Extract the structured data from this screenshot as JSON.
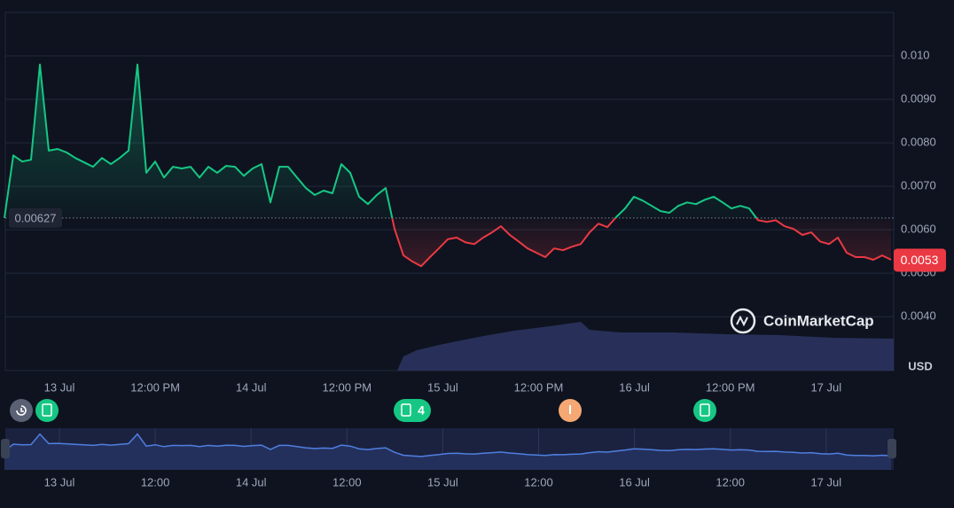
{
  "chart_data": {
    "type": "line",
    "values": [
      0.00627,
      0.00771,
      0.00757,
      0.00761,
      0.0098,
      0.00782,
      0.00786,
      0.00778,
      0.00765,
      0.00755,
      0.00745,
      0.00765,
      0.00751,
      0.00765,
      0.00782,
      0.0098,
      0.00731,
      0.00757,
      0.0072,
      0.00745,
      0.00741,
      0.00745,
      0.0072,
      0.00745,
      0.00731,
      0.00747,
      0.00745,
      0.00724,
      0.00741,
      0.00751,
      0.00663,
      0.00745,
      0.00745,
      0.0072,
      0.00696,
      0.0068,
      0.0069,
      0.00684,
      0.00751,
      0.00731,
      0.00676,
      0.00659,
      0.0068,
      0.00696,
      0.00602,
      0.00541,
      0.00527,
      0.00516,
      0.00537,
      0.00557,
      0.00578,
      0.00582,
      0.00571,
      0.00567,
      0.00582,
      0.00594,
      0.00608,
      0.00588,
      0.00573,
      0.00557,
      0.00547,
      0.00537,
      0.00557,
      0.00553,
      0.00561,
      0.00567,
      0.00594,
      0.00614,
      0.00606,
      0.00629,
      0.00649,
      0.00676,
      0.00667,
      0.00655,
      0.00643,
      0.00639,
      0.00655,
      0.00663,
      0.00659,
      0.00669,
      0.00676,
      0.00663,
      0.00649,
      0.00655,
      0.00649,
      0.00622,
      0.00618,
      0.00622,
      0.00608,
      0.00602,
      0.00588,
      0.00594,
      0.00573,
      0.00567,
      0.00582,
      0.00547,
      0.00537,
      0.00537,
      0.00531,
      0.00541,
      0.00531
    ],
    "up_color": "#16c784",
    "down_color": "#ea3943",
    "baseline": 0.00627,
    "current_price": 0.0053,
    "ylim": [
      0.00276,
      0.011
    ],
    "yticks": [
      {
        "value": 0.01,
        "label": "0.010"
      },
      {
        "value": 0.009,
        "label": "0.0090"
      },
      {
        "value": 0.008,
        "label": "0.0080"
      },
      {
        "value": 0.007,
        "label": "0.0070"
      },
      {
        "value": 0.006,
        "label": "0.0060"
      },
      {
        "value": 0.005,
        "label": "0.0050"
      },
      {
        "value": 0.004,
        "label": "0.0040"
      }
    ],
    "grid": true,
    "y_unit": "USD",
    "x_labels": [
      "13 Jul",
      "12:00 PM",
      "14 Jul",
      "12:00 PM",
      "15 Jul",
      "12:00 PM",
      "16 Jul",
      "12:00 PM",
      "17 Jul"
    ],
    "navigator_labels": [
      "13 Jul",
      "12:00",
      "14 Jul",
      "12:00",
      "15 Jul",
      "12:00",
      "16 Jul",
      "12:00",
      "17 Jul"
    ],
    "event_badge": "4",
    "watermark": "CoinMarketCap"
  }
}
